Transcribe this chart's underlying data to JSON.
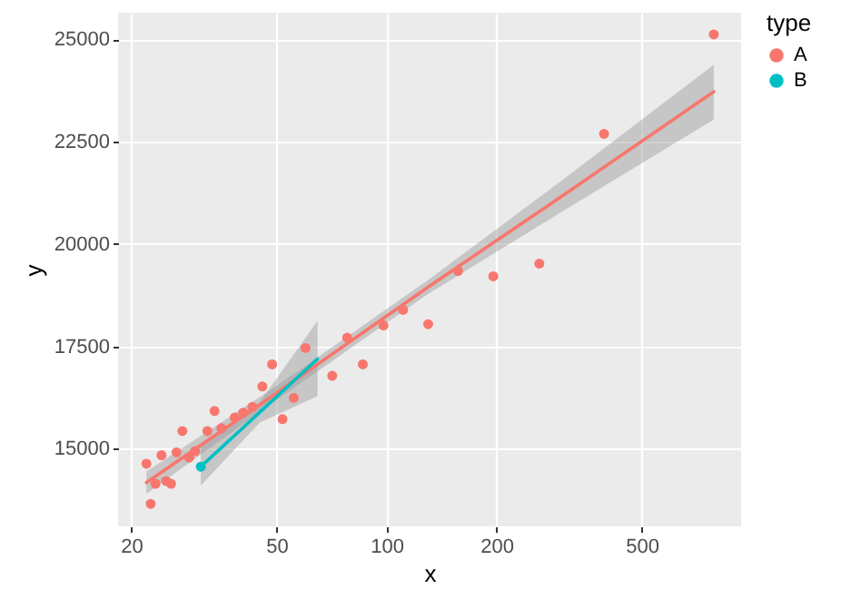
{
  "chart_data": {
    "type": "scatter",
    "xlabel": "x",
    "ylabel": "y",
    "legend_title": "type",
    "log": "x",
    "grid": true,
    "legend": "right",
    "xlim": [
      18.4,
      935
    ],
    "ylim": [
      13100,
      25650
    ],
    "xticks": [
      20,
      50,
      100,
      200,
      500
    ],
    "yticks": [
      15000,
      17500,
      20000,
      22500,
      25000
    ],
    "series": [
      {
        "name": "A",
        "color": "#f8766d",
        "marker": "circle",
        "x": [
          22.0,
          22.6,
          23.3,
          24.2,
          24.9,
          25.7,
          26.6,
          27.6,
          28.8,
          29.9,
          32.3,
          33.8,
          35.3,
          38.4,
          40.5,
          42.9,
          45.7,
          48.6,
          51.9,
          55.7,
          60.0,
          71.0,
          78.0,
          86.1,
          98.1,
          111,
          130,
          157,
          196,
          262,
          394,
          787
        ],
        "values": [
          14630,
          13650,
          14140,
          14840,
          14210,
          14140,
          14910,
          15430,
          14780,
          14940,
          15430,
          15920,
          15500,
          15760,
          15880,
          16020,
          16520,
          17060,
          15720,
          16240,
          17460,
          16780,
          17710,
          17060,
          18010,
          18390,
          18040,
          19340,
          19210,
          19520,
          22690,
          25120
        ]
      },
      {
        "name": "B",
        "color": "#00bfc4",
        "marker": "circle",
        "x": [
          31.0
        ],
        "values": [
          14560
        ]
      },
      {
        "type": "line",
        "color": "#f8766d",
        "marker": "none",
        "x": [
          22,
          50,
          130,
          300,
          787
        ],
        "values": [
          14170,
          16360,
          18950,
          21150,
          23720
        ],
        "lower": [
          13900,
          16190,
          18780,
          20770,
          23040
        ],
        "upper": [
          14440,
          16530,
          19120,
          21530,
          24380
        ]
      },
      {
        "type": "line",
        "color": "#00bfc4",
        "marker": "none",
        "x": [
          31.0,
          45,
          64.7
        ],
        "values": [
          14560,
          15890,
          17190
        ],
        "lower": [
          14100,
          15640,
          16280
        ],
        "upper": [
          15050,
          16140,
          18120
        ]
      }
    ]
  }
}
